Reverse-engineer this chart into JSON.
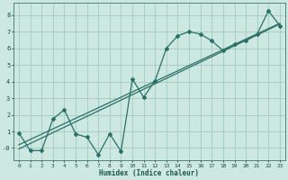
{
  "xlabel": "Humidex (Indice chaleur)",
  "background_color": "#cde8e0",
  "grid_color": "#a8cec6",
  "line_color": "#2a7068",
  "xlim": [
    -0.5,
    23.5
  ],
  "ylim": [
    -0.75,
    8.75
  ],
  "xticks": [
    0,
    1,
    2,
    3,
    4,
    5,
    6,
    7,
    8,
    9,
    10,
    11,
    12,
    13,
    14,
    15,
    16,
    17,
    18,
    19,
    20,
    21,
    22,
    23
  ],
  "yticks": [
    0,
    1,
    2,
    3,
    4,
    5,
    6,
    7,
    8
  ],
  "series1_x": [
    0,
    1,
    2,
    3,
    4,
    5,
    6,
    7,
    8,
    9,
    10,
    11,
    12,
    13,
    14,
    15,
    16,
    17,
    18,
    19,
    20,
    21,
    22,
    23
  ],
  "series1_y": [
    0.9,
    -0.15,
    -0.15,
    1.75,
    2.3,
    0.85,
    0.65,
    -0.4,
    0.85,
    -0.2,
    4.15,
    3.05,
    4.05,
    6.0,
    6.75,
    7.0,
    6.85,
    6.45,
    5.85,
    6.25,
    6.45,
    6.85,
    8.25,
    7.35
  ],
  "line2_x": [
    0,
    23
  ],
  "line2_y": [
    0.2,
    7.5
  ],
  "line3_x": [
    0,
    23
  ],
  "line3_y": [
    -0.05,
    7.45
  ]
}
